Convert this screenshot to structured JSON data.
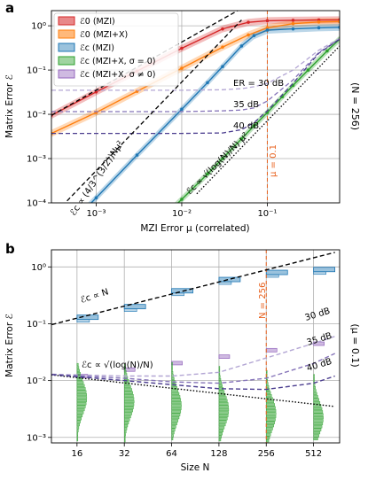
{
  "panels": [
    {
      "panel_label": "a",
      "right_label": "(N = 256)",
      "annotations": {
        "er30": "ER = 30 dB",
        "er35": "35 dB",
        "er40": "40 dB",
        "mu": "μ = 0.1",
        "scaling1": "ℰc ∝ (4/3^(3/2))Nμ²",
        "scaling2": "ℰc ∝ √(log(N)/N) μ²"
      },
      "legend": [
        {
          "label": "ℰ0 (MZI)",
          "color": "#d62728"
        },
        {
          "label": "ℰ0 (MZI+X)",
          "color": "#ff7f0e"
        },
        {
          "label": "ℰc (MZI)",
          "color": "#1f77b4"
        },
        {
          "label": "ℰc (MZI+X, σ = 0)",
          "color": "#2ca02c"
        },
        {
          "label": "ℰc (MZI+X, σ ≠ 0)",
          "color": "#9467bd"
        }
      ]
    },
    {
      "panel_label": "b",
      "right_label": "(μ = 0.1)",
      "annotations": {
        "n256": "N = 256",
        "er30": "30 dB",
        "er35": "35 dB",
        "er40": "40 dB",
        "scaling1": "ℰc ∝ N",
        "scaling2": "ℰc ∝ √(log(N)/N)"
      }
    }
  ],
  "chart_data": [
    {
      "type": "line",
      "panel": "a",
      "xlabel": "MZI Error μ (correlated)",
      "ylabel": "Matrix Error ℰ",
      "xscale": "log",
      "yscale": "log",
      "xlim": [
        0.0003,
        0.7
      ],
      "ylim": [
        0.0001,
        2.2
      ],
      "xticks": [
        {
          "v": 0.001,
          "label": "10⁻³"
        },
        {
          "v": 0.01,
          "label": "10⁻²"
        },
        {
          "v": 0.1,
          "label": "10⁻¹"
        }
      ],
      "yticks": [
        {
          "v": 0.0001,
          "label": "10⁻⁴"
        },
        {
          "v": 0.001,
          "label": "10⁻³"
        },
        {
          "v": 0.01,
          "label": "10⁻²"
        },
        {
          "v": 0.1,
          "label": "10⁻¹"
        },
        {
          "v": 1,
          "label": "10⁰"
        }
      ],
      "grid": true,
      "legend_position": "top-left",
      "series": [
        {
          "name": "ℰ0 (MZI)",
          "color": "#d62728",
          "x": [
            0.0003,
            0.001,
            0.003,
            0.01,
            0.03,
            0.06,
            0.1,
            0.2,
            0.4,
            0.7
          ],
          "y": [
            0.0095,
            0.032,
            0.095,
            0.31,
            0.85,
            1.2,
            1.3,
            1.33,
            1.35,
            1.36
          ]
        },
        {
          "name": "ℰ0 (MZI+X)",
          "color": "#ff7f0e",
          "x": [
            0.0003,
            0.001,
            0.003,
            0.01,
            0.03,
            0.06,
            0.1,
            0.2,
            0.4,
            0.7
          ],
          "y": [
            0.0037,
            0.011,
            0.033,
            0.11,
            0.33,
            0.62,
            0.9,
            1.12,
            1.22,
            1.25
          ]
        },
        {
          "name": "ℰc (MZI)",
          "color": "#1f77b4",
          "x": [
            0.0003,
            0.001,
            0.003,
            0.01,
            0.02,
            0.03,
            0.05,
            0.07,
            0.1,
            0.2,
            0.4,
            0.7
          ],
          "y": [
            1.2e-05,
            0.00013,
            0.0012,
            0.013,
            0.052,
            0.12,
            0.35,
            0.6,
            0.8,
            0.85,
            0.9,
            0.92
          ]
        },
        {
          "name": "ℰc (MZI+X, σ = 0)",
          "color": "#2ca02c",
          "x": [
            0.003,
            0.01,
            0.02,
            0.03,
            0.05,
            0.07,
            0.1,
            0.15,
            0.2,
            0.3,
            0.5,
            0.7
          ],
          "y": [
            1.3e-05,
            0.00012,
            0.00045,
            0.001,
            0.0028,
            0.0055,
            0.011,
            0.025,
            0.045,
            0.1,
            0.27,
            0.5
          ]
        },
        {
          "name": "ER = 30 dB",
          "color": "#b3a6d4",
          "dashed": true,
          "x": [
            0.0003,
            0.01,
            0.03,
            0.05,
            0.07,
            0.1,
            0.2,
            0.4,
            0.7
          ],
          "y": [
            0.035,
            0.035,
            0.036,
            0.038,
            0.042,
            0.05,
            0.1,
            0.28,
            0.52
          ]
        },
        {
          "name": "35 dB",
          "color": "#8573b8",
          "dashed": true,
          "x": [
            0.0003,
            0.01,
            0.03,
            0.05,
            0.07,
            0.1,
            0.2,
            0.4,
            0.7
          ],
          "y": [
            0.0115,
            0.0115,
            0.012,
            0.0125,
            0.014,
            0.02,
            0.06,
            0.25,
            0.5
          ]
        },
        {
          "name": "40 dB",
          "color": "#4b3d8f",
          "dashed": true,
          "x": [
            0.0003,
            0.01,
            0.03,
            0.05,
            0.07,
            0.1,
            0.2,
            0.4,
            0.7
          ],
          "y": [
            0.0037,
            0.0037,
            0.0038,
            0.0045,
            0.0065,
            0.012,
            0.05,
            0.24,
            0.5
          ]
        },
        {
          "name": "ℰc ∝ (4/3^(3/2))Nμ²",
          "color": "#000000",
          "dashed": true,
          "x": [
            0.00035,
            0.05
          ],
          "y": [
            6.5e-05,
            1.35
          ]
        },
        {
          "name": "ℰc ∝ √(log(N)/N) μ²",
          "color": "#000000",
          "dotted": true,
          "x": [
            0.015,
            0.7
          ],
          "y": [
            0.00016,
            0.35
          ]
        },
        {
          "name": "MZI error reference",
          "color": "#000000",
          "dashed": true,
          "x": [
            0.0003,
            0.045
          ],
          "y": [
            0.0095,
            2.2
          ]
        }
      ],
      "vline": {
        "x": 0.1,
        "color": "#e8601c"
      }
    },
    {
      "type": "line",
      "panel": "b",
      "xlabel": "Size N",
      "ylabel": "Matrix Error ℰ",
      "xscale": "log2",
      "yscale": "log",
      "ylim": [
        0.0008,
        2.0
      ],
      "categories": [
        "16",
        "32",
        "64",
        "128",
        "256",
        "512"
      ],
      "x": [
        16,
        32,
        64,
        128,
        256,
        512
      ],
      "yticks": [
        {
          "v": 0.001,
          "label": "10⁻³"
        },
        {
          "v": 0.01,
          "label": "10⁻²"
        },
        {
          "v": 0.1,
          "label": "10⁻¹"
        },
        {
          "v": 1,
          "label": "10⁰"
        }
      ],
      "grid": true,
      "series": [
        {
          "name": "ℰc (MZI)",
          "color": "#1f77b4",
          "values": [
            0.13,
            0.2,
            0.38,
            0.6,
            0.8,
            0.9
          ]
        },
        {
          "name": "ℰc ∝ N",
          "color": "#000000",
          "dashed": true,
          "x": [
            10,
            700
          ],
          "y": [
            0.09,
            1.8
          ]
        },
        {
          "name": "ℰc ∝ √(log(N)/N)",
          "color": "#000000",
          "dotted": true,
          "x": [
            10,
            700
          ],
          "y": [
            0.013,
            0.0035
          ]
        },
        {
          "name": "30 dB",
          "color": "#b3a6d4",
          "dashed": true,
          "x": [
            10,
            32,
            64,
            128,
            256,
            512,
            700
          ],
          "y": [
            0.013,
            0.012,
            0.012,
            0.014,
            0.025,
            0.045,
            0.06
          ]
        },
        {
          "name": "35 dB",
          "color": "#8573b8",
          "dashed": true,
          "x": [
            10,
            32,
            64,
            128,
            256,
            512,
            700
          ],
          "y": [
            0.013,
            0.011,
            0.0095,
            0.009,
            0.011,
            0.02,
            0.03
          ]
        },
        {
          "name": "40 dB",
          "color": "#4b3d8f",
          "dashed": true,
          "x": [
            10,
            32,
            64,
            128,
            256,
            512,
            700
          ],
          "y": [
            0.013,
            0.01,
            0.0085,
            0.0072,
            0.007,
            0.009,
            0.012
          ]
        }
      ],
      "vline": {
        "x": 256,
        "color": "#e8601c"
      }
    }
  ]
}
